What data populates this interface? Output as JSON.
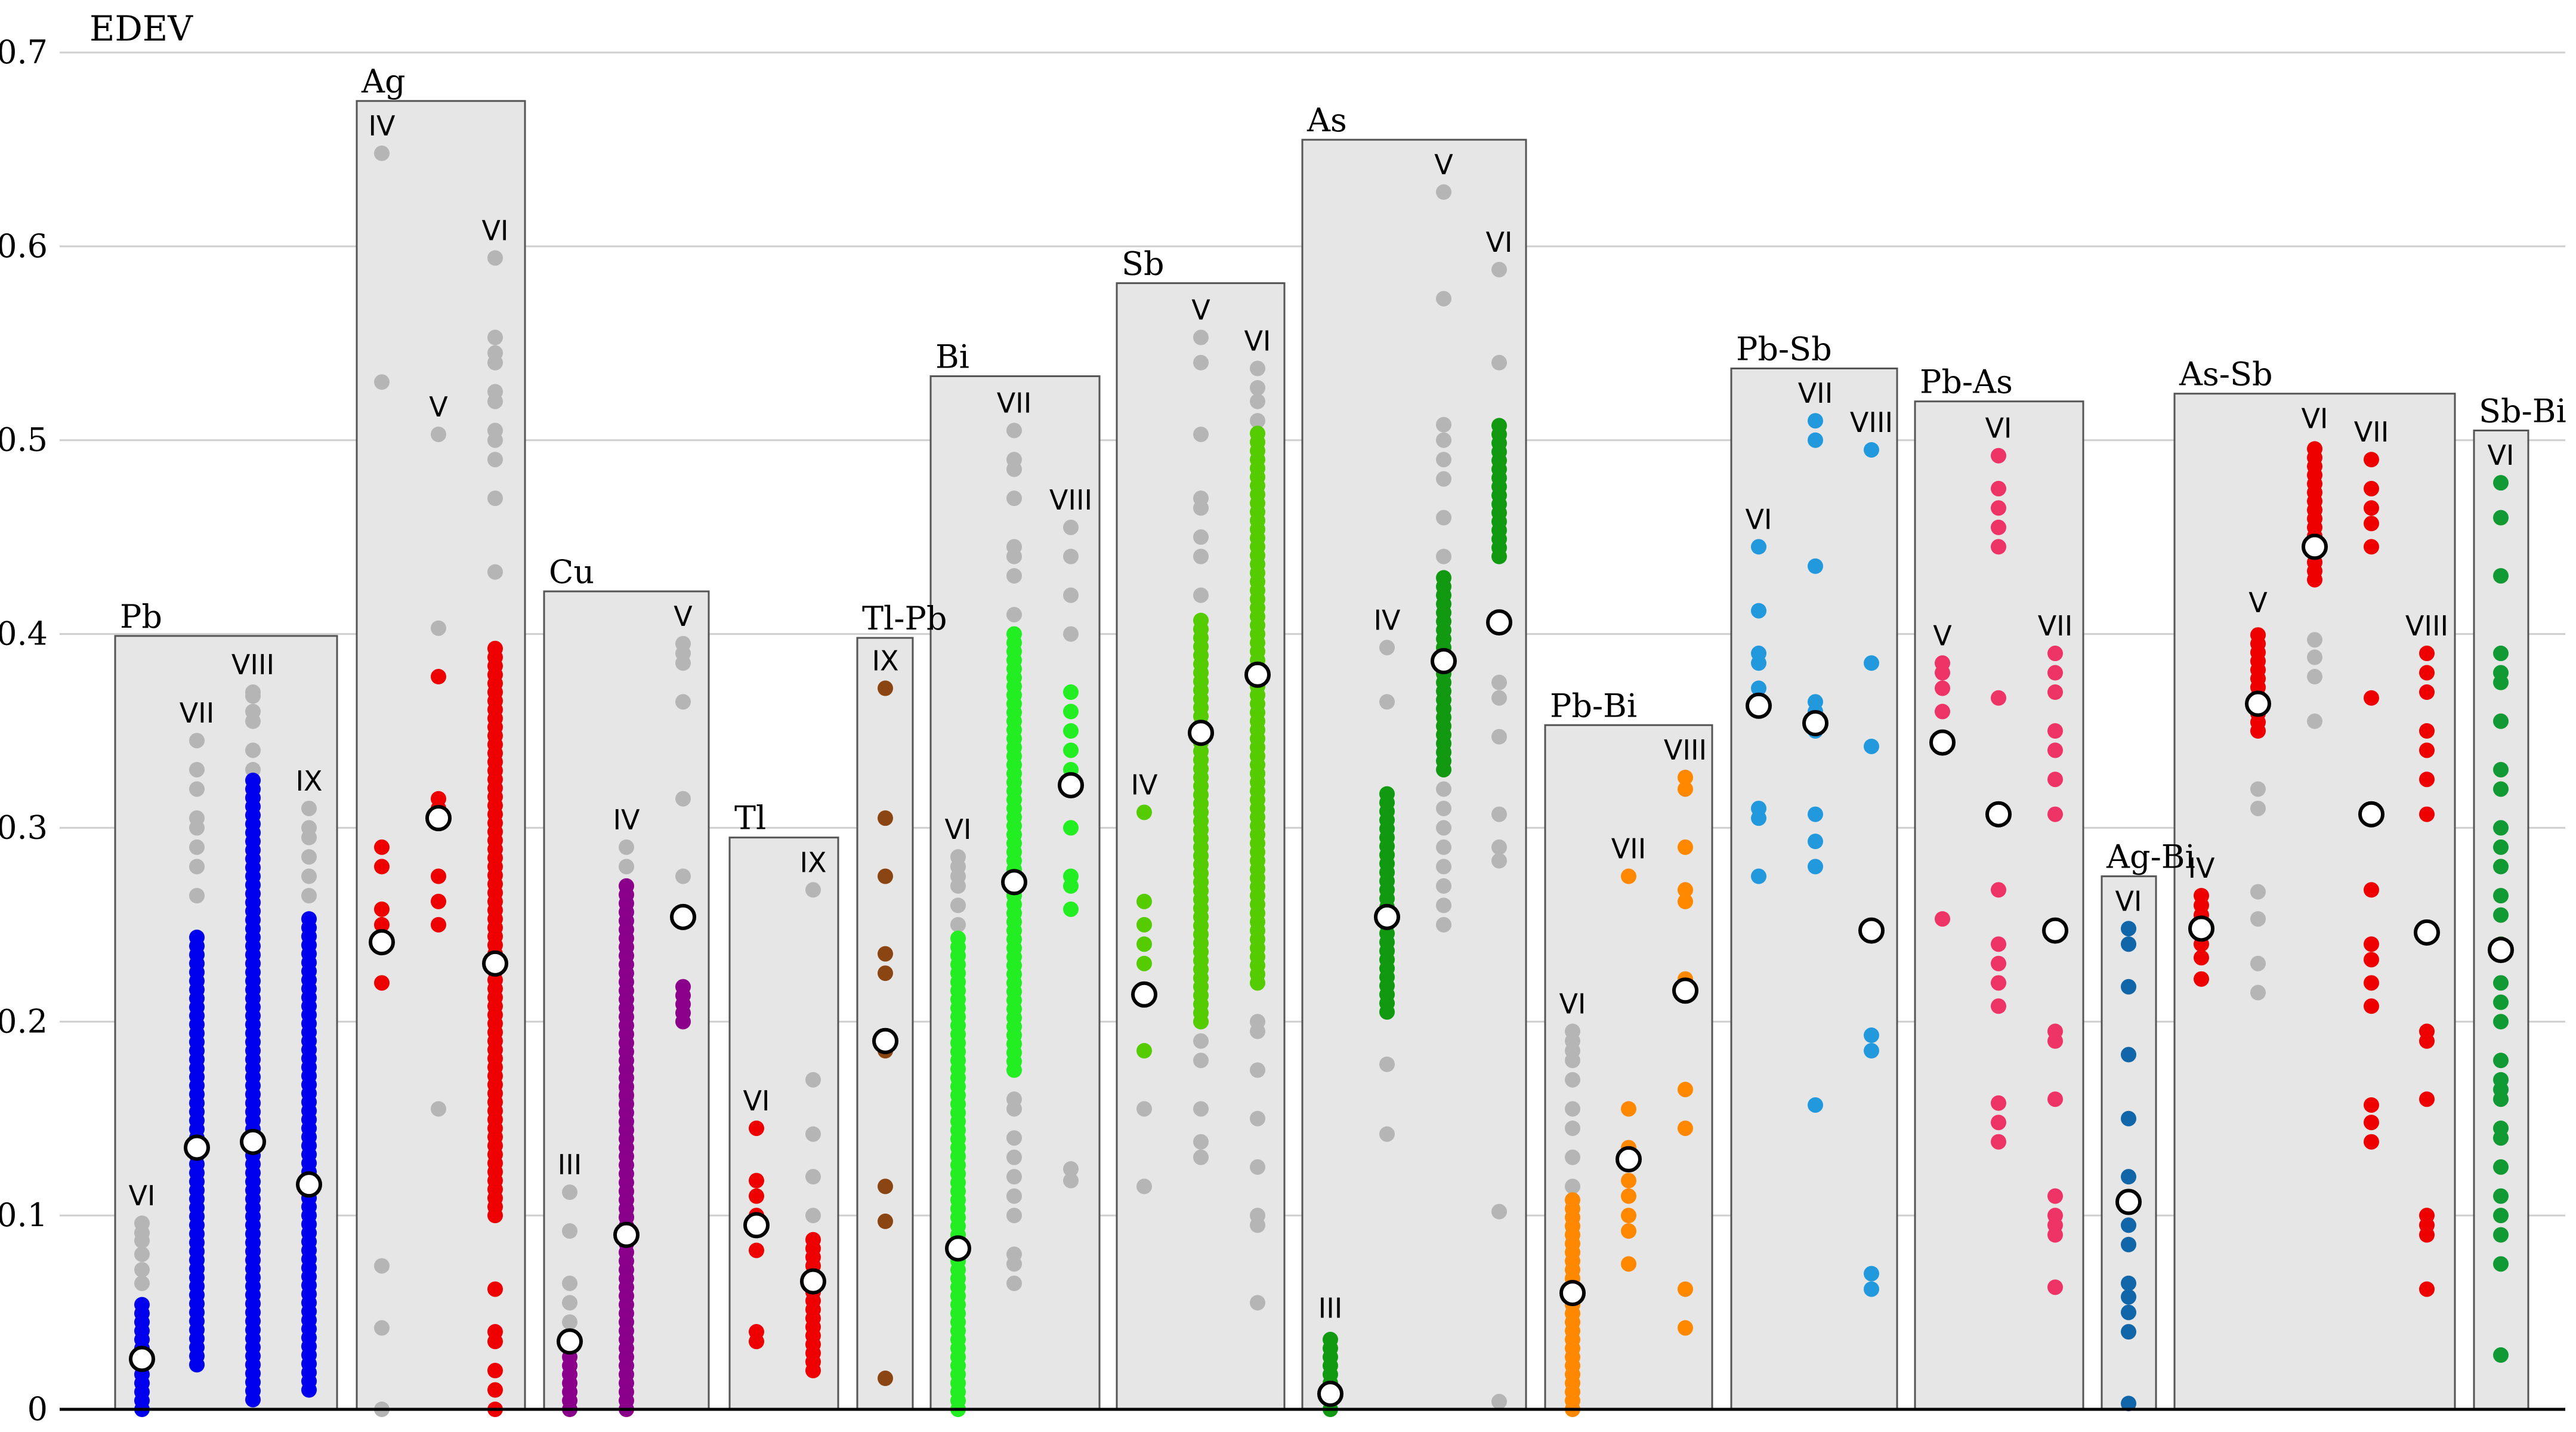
{
  "chart_data": {
    "type": "scatter",
    "title": "",
    "ylabel": "EDEV",
    "xlabel": "",
    "ylim": [
      0,
      0.7
    ],
    "yticks": [
      "0",
      "0.1",
      "0.2",
      "0.3",
      "0.4",
      "0.5",
      "0.6",
      "0.7"
    ],
    "grid": true,
    "groups": [
      {
        "name": "Pb",
        "max": 0.399,
        "columns": [
          {
            "label": "VI",
            "color": "#0000ee",
            "mean": 0.026,
            "span": [
              0,
              0.056
            ],
            "gray": [
              0.065,
              0.072,
              0.08,
              0.087,
              0.091,
              0.096
            ]
          },
          {
            "label": "VII",
            "color": "#0000ee",
            "mean": 0.135,
            "span": [
              0.023,
              0.245
            ],
            "gray": [
              0.265,
              0.28,
              0.29,
              0.3,
              0.305,
              0.32,
              0.33,
              0.345
            ]
          },
          {
            "label": "VIII",
            "color": "#0000ee",
            "mean": 0.138,
            "span": [
              0.005,
              0.325
            ],
            "gray": [
              0.33,
              0.34,
              0.355,
              0.36,
              0.368,
              0.37
            ]
          },
          {
            "label": "IX",
            "color": "#0000ee",
            "mean": 0.116,
            "span": [
              0.01,
              0.255
            ],
            "gray": [
              0.265,
              0.275,
              0.285,
              0.295,
              0.3,
              0.31
            ]
          }
        ]
      },
      {
        "name": "Ag",
        "max": 0.675,
        "columns": [
          {
            "label": "IV",
            "color": "#ee0000",
            "mean": 0.241,
            "points": [
              0.22,
              0.24,
              0.25,
              0.258,
              0.28,
              0.29
            ],
            "gray": [
              0.0,
              0.042,
              0.074,
              0.53,
              0.648
            ]
          },
          {
            "label": "V",
            "color": "#ee0000",
            "mean": 0.305,
            "points": [
              0.25,
              0.262,
              0.275,
              0.31,
              0.315,
              0.378
            ],
            "gray": [
              0.155,
              0.403,
              0.503
            ]
          },
          {
            "label": "VI",
            "color": "#ee0000",
            "mean": 0.23,
            "span": [
              0.1,
              0.395
            ],
            "points": [
              0.0,
              0.01,
              0.02,
              0.035,
              0.04,
              0.062
            ],
            "gray": [
              0.432,
              0.47,
              0.49,
              0.5,
              0.505,
              0.52,
              0.525,
              0.54,
              0.545,
              0.553,
              0.594
            ]
          }
        ]
      },
      {
        "name": "Cu",
        "max": 0.422,
        "columns": [
          {
            "label": "III",
            "color": "#8b008b",
            "mean": 0.035,
            "span": [
              0.0,
              0.03
            ],
            "gray": [
              0.045,
              0.055,
              0.065,
              0.092,
              0.112
            ]
          },
          {
            "label": "IV",
            "color": "#8b008b",
            "mean": 0.09,
            "span": [
              0.0,
              0.27
            ],
            "gray": [
              0.1,
              0.112,
              0.14,
              0.146,
              0.16,
              0.165,
              0.28,
              0.29
            ]
          },
          {
            "label": "V",
            "color": "#8b008b",
            "mean": 0.254,
            "span": [
              0.2,
              0.222
            ],
            "gray": [
              0.275,
              0.315,
              0.365,
              0.385,
              0.39,
              0.395
            ]
          }
        ]
      },
      {
        "name": "Tl",
        "max": 0.295,
        "columns": [
          {
            "label": "VI",
            "color": "#ee0000",
            "mean": 0.095,
            "points": [
              0.035,
              0.04,
              0.082,
              0.1,
              0.11,
              0.118,
              0.145
            ],
            "gray": []
          },
          {
            "label": "IX",
            "color": "#ee0000",
            "mean": 0.066,
            "span": [
              0.02,
              0.09
            ],
            "gray": [
              0.1,
              0.12,
              0.142,
              0.17,
              0.268
            ]
          }
        ]
      },
      {
        "name": "Tl-Pb",
        "max": 0.398,
        "columns": [
          {
            "label": "IX",
            "color": "#8b4513",
            "mean": 0.19,
            "points": [
              0.016,
              0.097,
              0.115,
              0.185,
              0.225,
              0.235,
              0.275,
              0.305,
              0.372
            ],
            "gray": []
          }
        ]
      },
      {
        "name": "Bi",
        "max": 0.533,
        "columns": [
          {
            "label": "VI",
            "color": "#22ee22",
            "mean": 0.083,
            "span": [
              0.0,
              0.245
            ],
            "gray": [
              0.25,
              0.26,
              0.27,
              0.275,
              0.28,
              0.285
            ]
          },
          {
            "label": "VII",
            "color": "#22ee22",
            "mean": 0.272,
            "span": [
              0.175,
              0.4
            ],
            "gray": [
              0.065,
              0.075,
              0.08,
              0.1,
              0.11,
              0.12,
              0.13,
              0.14,
              0.155,
              0.16,
              0.41,
              0.43,
              0.44,
              0.445,
              0.47,
              0.485,
              0.49,
              0.505
            ]
          },
          {
            "label": "VIII",
            "color": "#22ee22",
            "mean": 0.322,
            "points": [
              0.258,
              0.27,
              0.275,
              0.3,
              0.33,
              0.34,
              0.35,
              0.36,
              0.37
            ],
            "gray": [
              0.118,
              0.124,
              0.4,
              0.42,
              0.44,
              0.455
            ]
          }
        ]
      },
      {
        "name": "Sb",
        "max": 0.581,
        "columns": [
          {
            "label": "IV",
            "color": "#55cc00",
            "mean": 0.214,
            "points": [
              0.185,
              0.23,
              0.24,
              0.25,
              0.262,
              0.308
            ],
            "gray": [
              0.115,
              0.155
            ]
          },
          {
            "label": "V",
            "color": "#55cc00",
            "mean": 0.349,
            "span": [
              0.2,
              0.41
            ],
            "gray": [
              0.13,
              0.138,
              0.155,
              0.18,
              0.19,
              0.2,
              0.42,
              0.44,
              0.45,
              0.465,
              0.47,
              0.503,
              0.54,
              0.553
            ]
          },
          {
            "label": "VI",
            "color": "#55cc00",
            "mean": 0.379,
            "span": [
              0.22,
              0.505
            ],
            "gray": [
              0.055,
              0.095,
              0.1,
              0.125,
              0.15,
              0.175,
              0.195,
              0.2,
              0.51,
              0.52,
              0.527,
              0.537
            ]
          }
        ]
      },
      {
        "name": "As",
        "max": 0.655,
        "columns": [
          {
            "label": "III",
            "color": "#119911",
            "mean": 0.008,
            "span": [
              0.0,
              0.038
            ],
            "gray": []
          },
          {
            "label": "IV",
            "color": "#119911",
            "mean": 0.254,
            "span": [
              0.205,
              0.32
            ],
            "gray": [
              0.142,
              0.178,
              0.365,
              0.393
            ]
          },
          {
            "label": "V",
            "color": "#119911",
            "mean": 0.386,
            "span": [
              0.33,
              0.43
            ],
            "gray": [
              0.25,
              0.26,
              0.27,
              0.28,
              0.29,
              0.3,
              0.31,
              0.32,
              0.44,
              0.46,
              0.48,
              0.49,
              0.5,
              0.508,
              0.573,
              0.628
            ]
          },
          {
            "label": "VI",
            "color": "#119911",
            "mean": 0.406,
            "span": [
              0.44,
              0.51
            ],
            "gray": [
              0.004,
              0.102,
              0.283,
              0.29,
              0.307,
              0.347,
              0.367,
              0.375,
              0.54,
              0.588
            ]
          }
        ]
      },
      {
        "name": "Pb-Bi",
        "max": 0.353,
        "columns": [
          {
            "label": "VI",
            "color": "#ff8800",
            "mean": 0.06,
            "span": [
              0.0,
              0.11
            ],
            "gray": [
              0.115,
              0.13,
              0.145,
              0.155,
              0.17,
              0.18,
              0.185,
              0.19,
              0.195
            ]
          },
          {
            "label": "VII",
            "color": "#ff8800",
            "mean": 0.129,
            "points": [
              0.075,
              0.092,
              0.1,
              0.11,
              0.118,
              0.135,
              0.155,
              0.275
            ],
            "gray": []
          },
          {
            "label": "VIII",
            "color": "#ff8800",
            "mean": 0.216,
            "points": [
              0.042,
              0.062,
              0.145,
              0.165,
              0.222,
              0.262,
              0.268,
              0.29,
              0.32,
              0.326
            ],
            "gray": []
          }
        ]
      },
      {
        "name": "Pb-Sb",
        "max": 0.537,
        "columns": [
          {
            "label": "VI",
            "color": "#2299dd",
            "mean": 0.363,
            "points": [
              0.275,
              0.305,
              0.31,
              0.372,
              0.385,
              0.39,
              0.412,
              0.445
            ],
            "gray": []
          },
          {
            "label": "VII",
            "color": "#2299dd",
            "mean": 0.354,
            "points": [
              0.157,
              0.28,
              0.293,
              0.307,
              0.35,
              0.36,
              0.365,
              0.435,
              0.5,
              0.51
            ],
            "gray": []
          },
          {
            "label": "VIII",
            "color": "#2299dd",
            "mean": 0.247,
            "points": [
              0.062,
              0.07,
              0.185,
              0.193,
              0.342,
              0.385,
              0.495
            ],
            "gray": []
          }
        ]
      },
      {
        "name": "Pb-As",
        "max": 0.52,
        "columns": [
          {
            "label": "V",
            "color": "#ee3366",
            "mean": 0.344,
            "points": [
              0.253,
              0.36,
              0.372,
              0.38,
              0.385
            ],
            "gray": []
          },
          {
            "label": "VI",
            "color": "#ee3366",
            "mean": 0.307,
            "points": [
              0.138,
              0.148,
              0.158,
              0.208,
              0.22,
              0.23,
              0.24,
              0.268,
              0.367,
              0.445,
              0.455,
              0.465,
              0.475,
              0.492
            ],
            "gray": []
          },
          {
            "label": "VII",
            "color": "#ee3366",
            "mean": 0.247,
            "points": [
              0.063,
              0.09,
              0.095,
              0.1,
              0.11,
              0.16,
              0.19,
              0.195,
              0.307,
              0.325,
              0.34,
              0.35,
              0.37,
              0.38,
              0.39
            ],
            "gray": []
          }
        ]
      },
      {
        "name": "Ag-Bi",
        "max": 0.275,
        "columns": [
          {
            "label": "VI",
            "color": "#1166aa",
            "mean": 0.107,
            "points": [
              0.003,
              0.04,
              0.05,
              0.058,
              0.065,
              0.085,
              0.095,
              0.12,
              0.15,
              0.183,
              0.218,
              0.24,
              0.248
            ],
            "gray": []
          }
        ]
      },
      {
        "name": "As-Sb",
        "max": 0.524,
        "columns": [
          {
            "label": "IV",
            "color": "#ee0000",
            "mean": 0.248,
            "points": [
              0.222,
              0.233,
              0.24,
              0.255,
              0.26,
              0.265
            ],
            "gray": []
          },
          {
            "label": "V",
            "color": "#ee0000",
            "mean": 0.364,
            "span": [
              0.35,
              0.402
            ],
            "gray": [
              0.215,
              0.23,
              0.253,
              0.267,
              0.31,
              0.32
            ]
          },
          {
            "label": "VI",
            "color": "#ee0000",
            "mean": 0.445,
            "span": [
              0.428,
              0.497
            ],
            "gray": [
              0.355,
              0.378,
              0.388,
              0.397
            ]
          },
          {
            "label": "VII",
            "color": "#ee0000",
            "mean": 0.307,
            "points": [
              0.208,
              0.22,
              0.232,
              0.24,
              0.268,
              0.367,
              0.445,
              0.457,
              0.465,
              0.475,
              0.49,
              0.148,
              0.157,
              0.138
            ],
            "gray": []
          },
          {
            "label": "VIII",
            "color": "#ee0000",
            "mean": 0.246,
            "points": [
              0.062,
              0.09,
              0.095,
              0.1,
              0.16,
              0.19,
              0.195,
              0.307,
              0.325,
              0.34,
              0.35,
              0.37,
              0.38,
              0.39
            ],
            "gray": []
          }
        ]
      },
      {
        "name": "Sb-Bi",
        "max": 0.505,
        "columns": [
          {
            "label": "VI",
            "color": "#119933",
            "mean": 0.237,
            "points": [
              0.028,
              0.075,
              0.09,
              0.1,
              0.11,
              0.125,
              0.14,
              0.145,
              0.16,
              0.165,
              0.17,
              0.18,
              0.2,
              0.21,
              0.22,
              0.24,
              0.255,
              0.265,
              0.28,
              0.29,
              0.3,
              0.32,
              0.33,
              0.355,
              0.375,
              0.38,
              0.39,
              0.43,
              0.46,
              0.478
            ],
            "gray": []
          }
        ]
      }
    ]
  }
}
